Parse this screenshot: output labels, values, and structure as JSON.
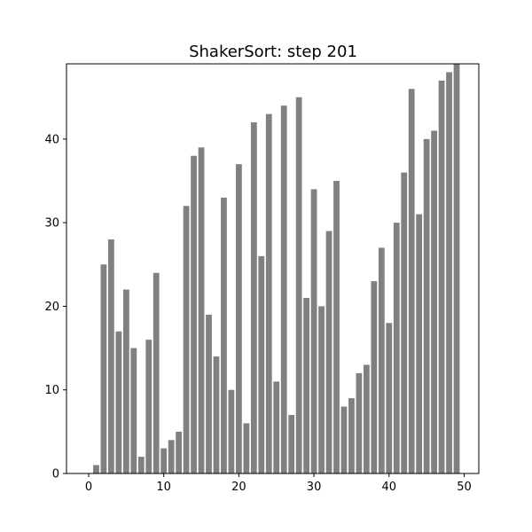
{
  "chart_data": {
    "type": "bar",
    "title": "ShakerSort: step 201",
    "xlabel": "",
    "ylabel": "",
    "x": [
      0,
      1,
      2,
      3,
      4,
      5,
      6,
      7,
      8,
      9,
      10,
      11,
      12,
      13,
      14,
      15,
      16,
      17,
      18,
      19,
      20,
      21,
      22,
      23,
      24,
      25,
      26,
      27,
      28,
      29,
      30,
      31,
      32,
      33,
      34,
      35,
      36,
      37,
      38,
      39,
      40,
      41,
      42,
      43,
      44,
      45,
      46,
      47,
      48,
      49
    ],
    "values": [
      0,
      1,
      25,
      28,
      17,
      22,
      15,
      2,
      16,
      24,
      3,
      4,
      5,
      32,
      38,
      39,
      19,
      14,
      33,
      10,
      37,
      6,
      42,
      26,
      43,
      11,
      44,
      7,
      45,
      21,
      34,
      20,
      29,
      35,
      8,
      9,
      12,
      13,
      23,
      27,
      18,
      30,
      36,
      46,
      31,
      40,
      41,
      47,
      48,
      49
    ],
    "xlim": [
      -2.95,
      51.95
    ],
    "ylim": [
      0,
      49
    ],
    "xticks": [
      0,
      10,
      20,
      30,
      40,
      50
    ],
    "yticks": [
      0,
      10,
      20,
      30,
      40
    ],
    "grid": false,
    "bar_color": "#808080"
  }
}
